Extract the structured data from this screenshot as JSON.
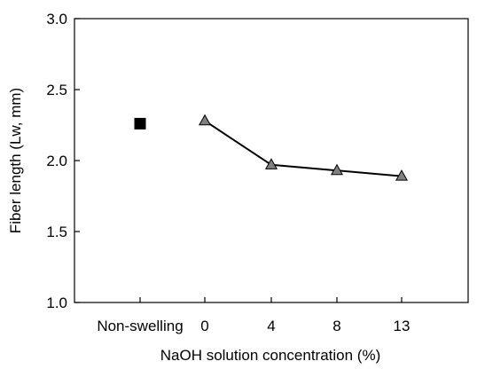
{
  "chart_data": {
    "type": "line",
    "title": "",
    "xlabel": "NaOH solution concentration (%)",
    "ylabel": "Fiber length (Lw, mm)",
    "ylim": [
      1.0,
      3.0
    ],
    "yticks": [
      1.0,
      1.5,
      2.0,
      2.5,
      3.0
    ],
    "ytick_labels": [
      "1.0",
      "1.5",
      "2.0",
      "2.5",
      "3.0"
    ],
    "categories": [
      "Non-swelling",
      "0",
      "4",
      "8",
      "13"
    ],
    "grid": false,
    "legend": "none",
    "series": [
      {
        "marker": "square",
        "color": "#000000",
        "connected": false,
        "points": [
          {
            "category": "Non-swelling",
            "y": 2.26
          }
        ]
      },
      {
        "marker": "triangle",
        "color": "#808080",
        "line_color": "#000000",
        "connected": true,
        "points": [
          {
            "category": "0",
            "y": 2.28
          },
          {
            "category": "4",
            "y": 1.97
          },
          {
            "category": "8",
            "y": 1.93
          },
          {
            "category": "13",
            "y": 1.89
          }
        ]
      }
    ]
  }
}
